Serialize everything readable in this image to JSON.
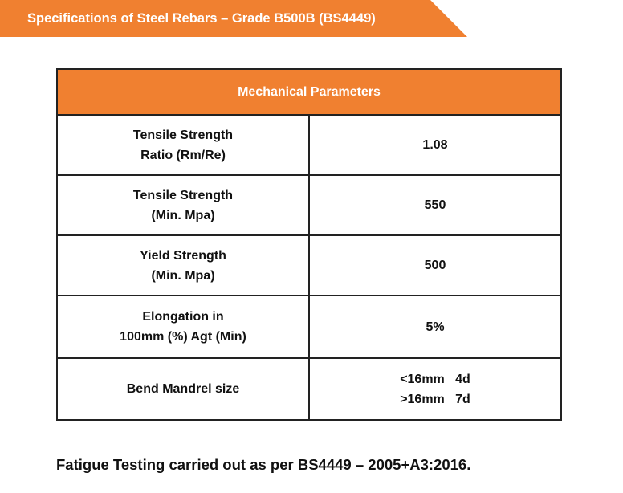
{
  "banner": {
    "title": "Specifications of Steel Rebars – Grade B500B (BS4449)",
    "color": "#f08030"
  },
  "table": {
    "header": "Mechanical Parameters",
    "header_color": "#f08030",
    "rows": [
      {
        "parameter_lines": [
          "Tensile Strength",
          "Ratio (Rm/Re)"
        ],
        "value_lines": [
          "1.08"
        ]
      },
      {
        "parameter_lines": [
          "Tensile Strength",
          "(Min. Mpa)"
        ],
        "value_lines": [
          "550"
        ]
      },
      {
        "parameter_lines": [
          "Yield Strength",
          "(Min. Mpa)"
        ],
        "value_lines": [
          "500"
        ]
      },
      {
        "parameter_lines": [
          "Elongation in",
          "100mm (%) Agt (Min)"
        ],
        "value_lines": [
          "5%"
        ]
      },
      {
        "parameter_lines": [
          "Bend Mandrel size"
        ],
        "value_lines": [
          "<16mm   4d",
          ">16mm   7d"
        ]
      }
    ]
  },
  "footnote": "Fatigue Testing carried out as per BS4449 – 2005+A3:2016."
}
